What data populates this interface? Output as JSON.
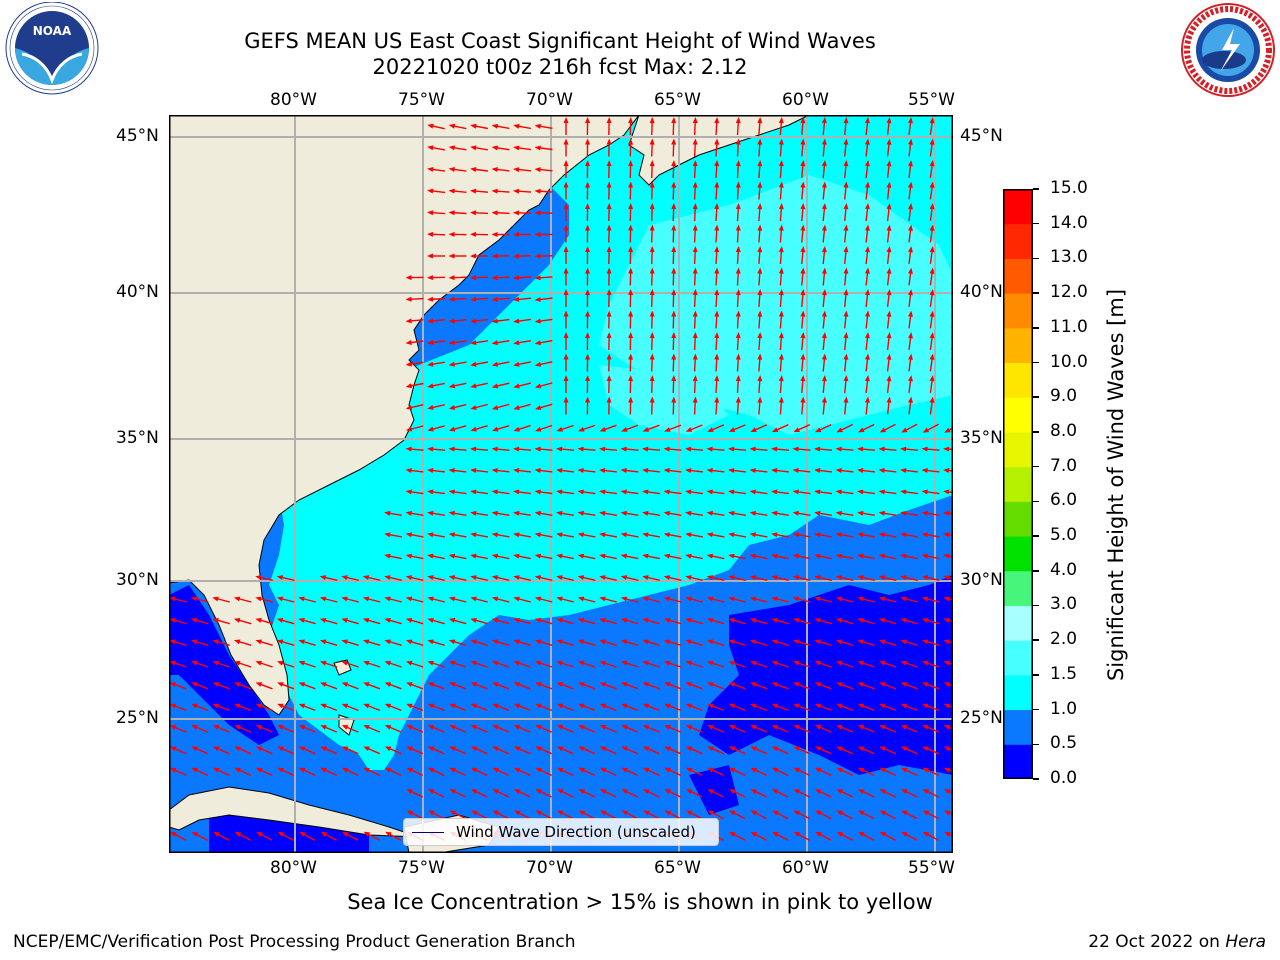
{
  "header": {
    "title_line1": "GEFS MEAN US East Coast Significant Height of Wind Waves",
    "title_line2": "20221020 t00z 216h fcst   Max: 2.12"
  },
  "logos": {
    "left": {
      "name": "noaa-logo",
      "text": "NOAA",
      "ring_text": "NATIONAL OCEANIC AND ATMOSPHERIC ADMINISTRATION · U.S. DEPARTMENT OF COMMERCE"
    },
    "right": {
      "name": "nws-logo",
      "ring_text": "NATIONAL WEATHER SERVICE"
    }
  },
  "map": {
    "lon_labels": [
      "80°W",
      "75°W",
      "70°W",
      "65°W",
      "60°W",
      "55°W"
    ],
    "lat_labels": [
      "45°N",
      "40°N",
      "35°N",
      "30°N",
      "25°N"
    ],
    "colors": {
      "land": "#efecdb",
      "gridline": "#b0b0b0",
      "arrow": "#ff0000",
      "coast": "#000000"
    }
  },
  "colorbar": {
    "label": "Significant Height of Wind Waves [m]",
    "ticks": [
      "0.0",
      "0.5",
      "1.0",
      "1.5",
      "2.0",
      "3.0",
      "4.0",
      "5.0",
      "6.0",
      "7.0",
      "8.0",
      "9.0",
      "10.0",
      "11.0",
      "12.0",
      "13.0",
      "14.0",
      "15.0"
    ],
    "colors": [
      "#0000ff",
      "#0a78ff",
      "#00ffff",
      "#47ffff",
      "#a8ffff",
      "#46f57a",
      "#00e100",
      "#64dc00",
      "#b4f000",
      "#e6f500",
      "#ffff00",
      "#ffe600",
      "#ffb400",
      "#ff8c00",
      "#ff5a00",
      "#ff2800",
      "#ff0000"
    ]
  },
  "legend": {
    "label": "Wind Wave Direction (unscaled)"
  },
  "notes": {
    "ice": "Sea Ice Concentration > 15% is shown in pink to yellow"
  },
  "footer": {
    "left": "NCEP/EMC/Verification Post Processing Product Generation Branch",
    "right_prefix": "22 Oct 2022 on ",
    "right_italic": "Hera"
  }
}
